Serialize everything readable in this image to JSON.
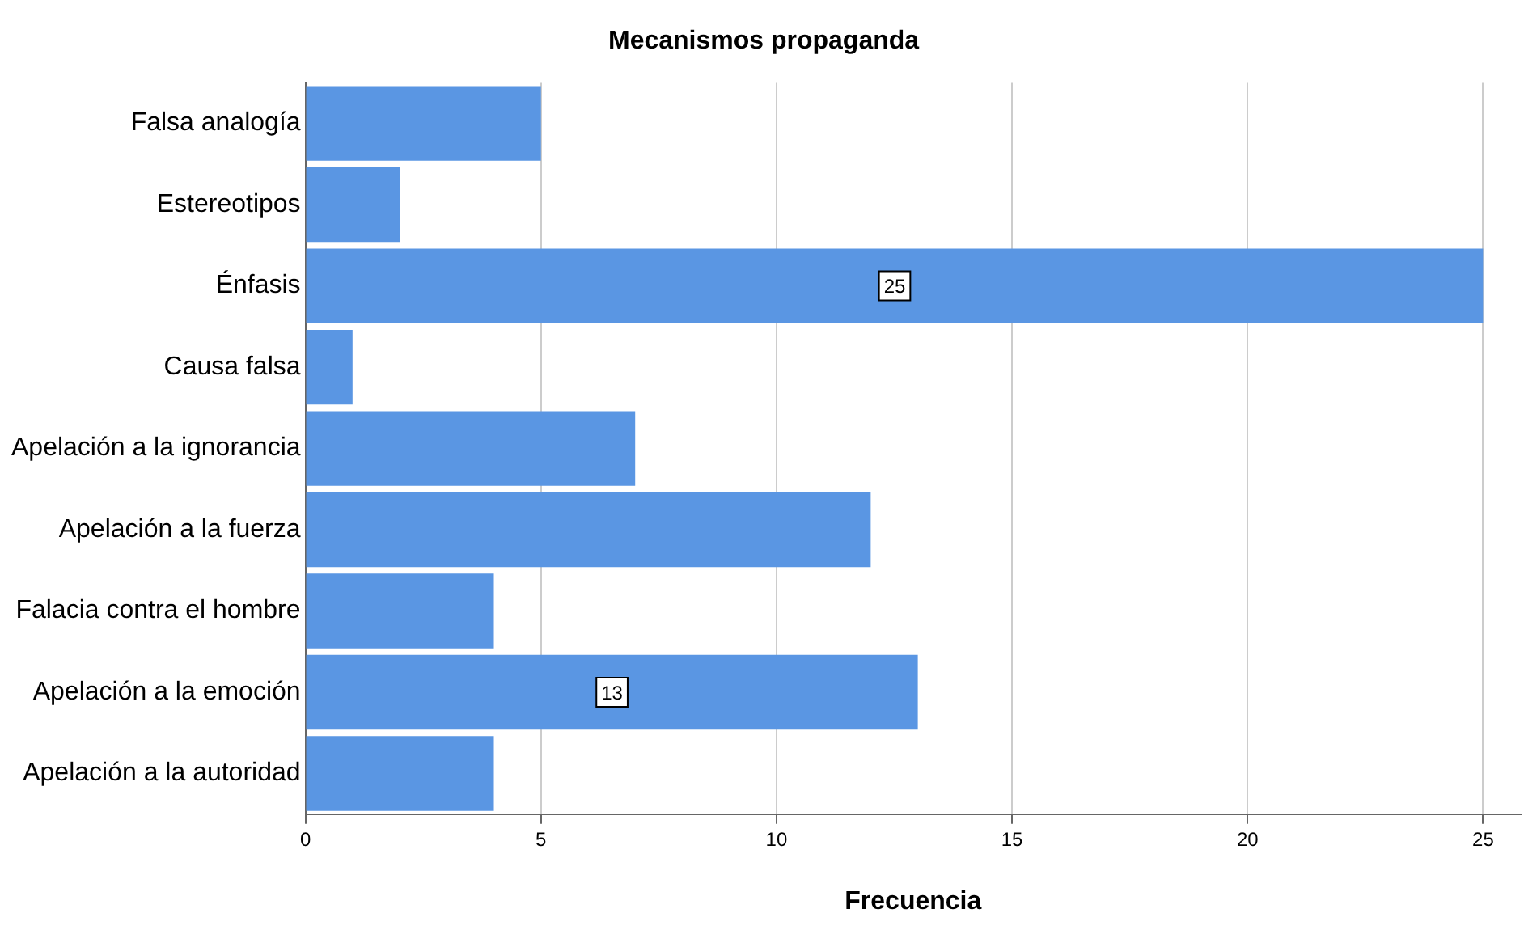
{
  "chart_data": {
    "type": "bar",
    "orientation": "horizontal",
    "title": "Mecanismos propaganda",
    "xlabel": "Frecuencia",
    "categories": [
      "Falsa analogía",
      "Estereotipos",
      "Énfasis",
      "Causa falsa",
      "Apelación a la ignorancia",
      "Apelación a la fuerza",
      "Falacia contra el hombre",
      "Apelación a la emoción",
      "Apelación a la autoridad"
    ],
    "values": [
      5,
      2,
      25,
      1,
      7,
      12,
      4,
      13,
      4
    ],
    "value_labels": [
      null,
      null,
      "25",
      null,
      null,
      null,
      null,
      "13",
      null
    ],
    "color": "#5a96e3",
    "xlim": [
      0,
      25.8
    ],
    "xticks": [
      0,
      5,
      10,
      15,
      20,
      25
    ],
    "grid": "x",
    "legend": false
  }
}
